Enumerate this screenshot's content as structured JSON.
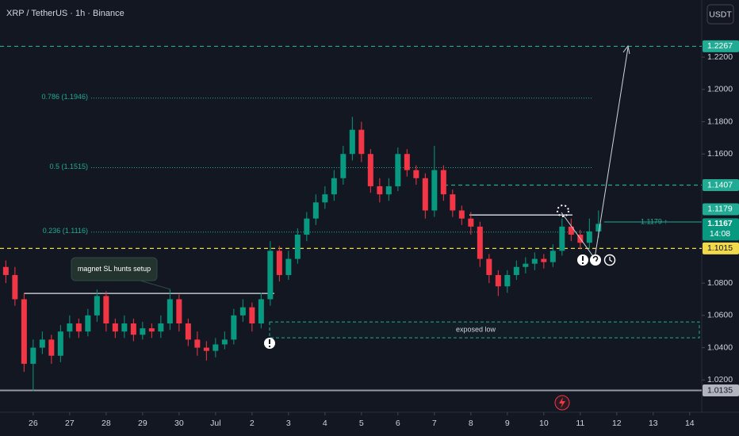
{
  "chart_data": {
    "type": "candlestick",
    "title": "XRP / TetherUS · 1h · Binance",
    "currency": "USDT",
    "up_color": "#089981",
    "down_color": "#f23645",
    "xlim": [
      -0.91,
      18.33
    ],
    "ylim": [
      1.0,
      1.2554
    ],
    "grid": false,
    "xticks": [
      {
        "value": 0,
        "label": "26"
      },
      {
        "value": 1,
        "label": "27"
      },
      {
        "value": 2,
        "label": "28"
      },
      {
        "value": 3,
        "label": "29"
      },
      {
        "value": 4,
        "label": "30"
      },
      {
        "value": 5,
        "label": "Jul"
      },
      {
        "value": 6,
        "label": "2"
      },
      {
        "value": 7,
        "label": "3"
      },
      {
        "value": 8,
        "label": "4"
      },
      {
        "value": 9,
        "label": "5"
      },
      {
        "value": 10,
        "label": "6"
      },
      {
        "value": 11,
        "label": "7"
      },
      {
        "value": 12,
        "label": "8"
      },
      {
        "value": 13,
        "label": "9"
      },
      {
        "value": 14,
        "label": "10"
      },
      {
        "value": 15,
        "label": "11"
      },
      {
        "value": 16,
        "label": "12"
      },
      {
        "value": 17,
        "label": "13"
      },
      {
        "value": 18,
        "label": "14"
      }
    ],
    "yticks": [
      {
        "value": 1.02,
        "label": "1.0200"
      },
      {
        "value": 1.04,
        "label": "1.0400"
      },
      {
        "value": 1.06,
        "label": "1.0600"
      },
      {
        "value": 1.08,
        "label": "1.0800"
      },
      {
        "value": 1.16,
        "label": "1.1600"
      },
      {
        "value": 1.18,
        "label": "1.1800"
      },
      {
        "value": 1.2,
        "label": "1.2000"
      },
      {
        "value": 1.22,
        "label": "1.2200"
      }
    ],
    "x": [
      -0.75,
      -0.5,
      -0.25,
      0,
      0.25,
      0.5,
      0.75,
      1,
      1.25,
      1.5,
      1.75,
      2,
      2.25,
      2.5,
      2.75,
      3,
      3.25,
      3.5,
      3.75,
      4,
      4.25,
      4.5,
      4.75,
      5,
      5.25,
      5.5,
      5.75,
      6,
      6.25,
      6.5,
      6.75,
      7,
      7.25,
      7.5,
      7.75,
      8,
      8.25,
      8.5,
      8.75,
      9,
      9.25,
      9.5,
      9.75,
      10,
      10.25,
      10.5,
      10.75,
      11,
      11.25,
      11.5,
      11.75,
      12,
      12.25,
      12.5,
      12.75,
      13,
      13.25,
      13.5,
      13.75,
      14,
      14.25,
      14.5,
      14.75,
      15,
      15.25,
      15.5
    ],
    "open": [
      1.09,
      1.085,
      1.07,
      1.03,
      1.04,
      1.045,
      1.035,
      1.05,
      1.055,
      1.05,
      1.06,
      1.072,
      1.055,
      1.05,
      1.055,
      1.048,
      1.052,
      1.05,
      1.055,
      1.07,
      1.055,
      1.045,
      1.04,
      1.038,
      1.042,
      1.045,
      1.06,
      1.065,
      1.055,
      1.07,
      1.1,
      1.085,
      1.095,
      1.11,
      1.12,
      1.13,
      1.135,
      1.145,
      1.16,
      1.175,
      1.16,
      1.14,
      1.135,
      1.14,
      1.16,
      1.15,
      1.145,
      1.125,
      1.15,
      1.135,
      1.125,
      1.12,
      1.115,
      1.095,
      1.085,
      1.078,
      1.085,
      1.09,
      1.092,
      1.095,
      1.093,
      1.1,
      1.115,
      1.11,
      1.105,
      1.112
    ],
    "high": [
      1.094,
      1.09,
      1.074,
      1.045,
      1.05,
      1.048,
      1.054,
      1.06,
      1.058,
      1.064,
      1.076,
      1.075,
      1.058,
      1.06,
      1.058,
      1.056,
      1.055,
      1.06,
      1.076,
      1.073,
      1.058,
      1.05,
      1.044,
      1.046,
      1.05,
      1.064,
      1.07,
      1.068,
      1.074,
      1.106,
      1.103,
      1.1,
      1.114,
      1.124,
      1.135,
      1.14,
      1.15,
      1.165,
      1.183,
      1.18,
      1.163,
      1.145,
      1.145,
      1.164,
      1.163,
      1.153,
      1.148,
      1.165,
      1.153,
      1.138,
      1.128,
      1.124,
      1.118,
      1.098,
      1.088,
      1.088,
      1.094,
      1.096,
      1.099,
      1.098,
      1.104,
      1.12,
      1.12,
      1.113,
      1.12,
      1.125
    ],
    "low": [
      1.08,
      1.066,
      1.025,
      1.013,
      1.036,
      1.03,
      1.031,
      1.046,
      1.046,
      1.047,
      1.056,
      1.05,
      1.046,
      1.046,
      1.044,
      1.045,
      1.046,
      1.046,
      1.051,
      1.05,
      1.041,
      1.035,
      1.032,
      1.034,
      1.039,
      1.042,
      1.056,
      1.05,
      1.052,
      1.066,
      1.081,
      1.082,
      1.092,
      1.106,
      1.116,
      1.126,
      1.131,
      1.141,
      1.156,
      1.155,
      1.136,
      1.13,
      1.131,
      1.137,
      1.146,
      1.141,
      1.12,
      1.121,
      1.131,
      1.121,
      1.116,
      1.11,
      1.09,
      1.08,
      1.072,
      1.074,
      1.082,
      1.086,
      1.088,
      1.089,
      1.09,
      1.097,
      1.106,
      1.101,
      1.101,
      1.108
    ],
    "close": [
      1.085,
      1.07,
      1.03,
      1.04,
      1.045,
      1.035,
      1.05,
      1.055,
      1.05,
      1.06,
      1.072,
      1.055,
      1.05,
      1.055,
      1.048,
      1.052,
      1.05,
      1.055,
      1.07,
      1.055,
      1.045,
      1.04,
      1.038,
      1.042,
      1.045,
      1.06,
      1.065,
      1.055,
      1.07,
      1.1,
      1.085,
      1.095,
      1.11,
      1.12,
      1.13,
      1.135,
      1.145,
      1.16,
      1.175,
      1.16,
      1.14,
      1.135,
      1.14,
      1.16,
      1.15,
      1.145,
      1.125,
      1.15,
      1.135,
      1.125,
      1.12,
      1.115,
      1.095,
      1.085,
      1.078,
      1.085,
      1.09,
      1.092,
      1.095,
      1.093,
      1.1,
      1.115,
      1.11,
      1.105,
      1.112,
      1.1167
    ],
    "levels": [
      {
        "value": 1.2267,
        "color": "#22ab94",
        "style": "dashed"
      },
      {
        "value": 1.1407,
        "color": "#22ab94",
        "style": "dashed"
      },
      {
        "value": 1.1015,
        "color": "#f0d94a",
        "style": "dashed"
      },
      {
        "value": 1.0135,
        "color": "#9598a1",
        "style": "solid"
      }
    ],
    "fib_levels": [
      {
        "value": 1.1946,
        "label": "0.786 (1.1946)"
      },
      {
        "value": 1.1515,
        "label": "0.5 (1.1515)"
      },
      {
        "value": 1.1116,
        "label": "0.236 (1.1116)"
      }
    ],
    "alert": {
      "value": 1.1179,
      "label": "1.1179 ↑"
    },
    "last_price": 1.1167,
    "countdown": "14:08",
    "magnet_level": 1.0736,
    "magnet_label": "magnet SL hunts setup",
    "resistance_level": 1.1222,
    "zone": {
      "top": 1.0559,
      "bottom": 1.0461,
      "label": "exposed low"
    }
  }
}
